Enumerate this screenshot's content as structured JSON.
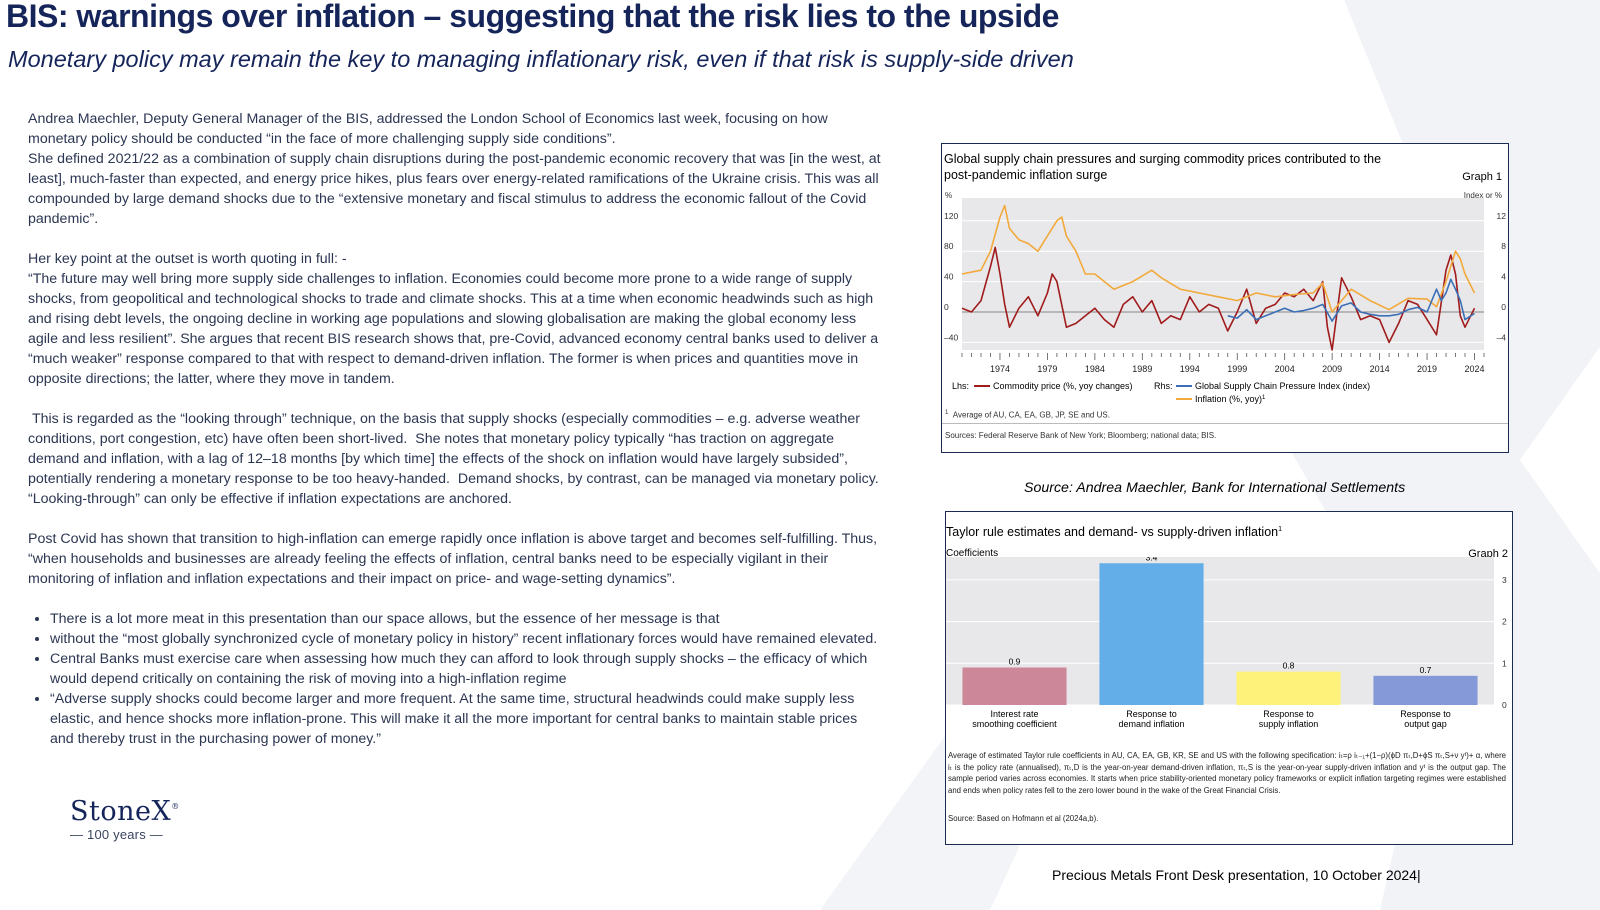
{
  "header": {
    "title": "BIS:  warnings over inflation – suggesting that the risk lies to the upside",
    "subtitle": "Monetary policy may remain the key to managing inflationary risk, even if that risk is supply-side driven"
  },
  "body": {
    "p1": "Andrea Maechler, Deputy General Manager of the BIS, addressed the London School of Economics last week, focusing on how monetary policy should be conducted “in the face of more challenging supply side conditions”.",
    "p2": "She  defined 2021/22 as a combination of supply chain disruptions during the post-pandemic economic recovery that was [in the west, at least], much-faster than expected, and energy price hikes, plus fears over energy-related ramifications of the Ukraine crisis.  This was all compounded by large demand shocks due to the “extensive monetary and fiscal stimulus to address the economic fallout of the Covid pandemic”.",
    "p3": "Her key point at the outset is worth quoting in full: -",
    "p4": "“The future may well bring more supply side challenges to inflation. Economies could become more prone to a wide range of supply shocks, from geopolitical and technological shocks to trade and climate shocks. This at a time when economic headwinds such as high and rising debt levels, the ongoing decline in working age populations and slowing globalisation are making the global economy less agile and less resilient”. She argues that recent BIS research shows that, pre-Covid, advanced economy central banks used to deliver a “much weaker” response compared to that with respect to demand-driven inflation. The former is when prices and quantities move in opposite directions; the latter, where they move in tandem.",
    "p5": " This is regarded as the “looking through” technique, on the basis that supply shocks (especially commodities – e.g. adverse weather conditions, port congestion, etc) have often been short-lived.  She notes that monetary policy typically “has traction on aggregate demand and inflation, with a lag of 12–18 months [by which time] the effects of the shock on inflation would have largely subsided”, potentially rendering a monetary response to be too heavy-handed.  Demand shocks, by contrast, can be managed via monetary policy.  “Looking-through” can only be effective if inflation expectations are anchored.",
    "p6": "Post Covid has shown that transition to high-inflation can emerge rapidly once inflation is above target and becomes self-fulfilling.  Thus, “when households and businesses are already feeling the effects of inflation, central banks need to be especially vigilant in their monitoring of inflation and inflation expectations and their impact on price- and wage-setting dynamics”.",
    "bullets": [
      "There is a lot more meat in this presentation than our space allows, but the essence of her message is that",
      "without the “most globally synchronized cycle of monetary policy in history” recent inflationary forces would have remained elevated.",
      "Central Banks must exercise care when assessing how much they can afford to look through supply shocks – the efficacy of which would depend critically on containing  the risk of moving into a high-inflation regime",
      "“Adverse supply shocks could become larger and more frequent. At the same time, structural headwinds could make supply less elastic, and hence shocks more inflation-prone. This will make it all the more important for central banks to maintain stable prices and thereby trust in the purchasing power of money.”"
    ]
  },
  "logo": {
    "name": "StoneX",
    "mark": "®",
    "years": "— 100 years —"
  },
  "graph1": {
    "title_line1": "Global supply chain pressures and surging commodity prices contributed to the",
    "title_line2": "post-pandemic inflation surge",
    "number": "Graph 1",
    "lhs_unit": "%",
    "rhs_unit": "Index or %",
    "legend": {
      "lhs_prefix": "Lhs:",
      "rhs_prefix": "Rhs:",
      "commodity": "Commodity price (%, yoy changes)",
      "gscpi": "Global Supply Chain Pressure Index (index)",
      "inflation": "Inflation (%, yoy)",
      "inflation_sup": "1"
    },
    "footnote_sup": "1",
    "footnote": "Average of AU, CA, EA, GB, JP, SE and US.",
    "sources": "Sources: Federal Reserve Bank of New York; Bloomberg; national data; BIS."
  },
  "graph1_source": "Source: Andrea Maechler, Bank for International Settlements",
  "graph2": {
    "title": "Taylor rule estimates and demand- vs supply-driven inflation",
    "title_sup": "1",
    "number": "Graph 2",
    "unit": "Coefficients",
    "note": "Average of estimated Taylor rule coefficients in AU, CA, EA, GB, KR, SE and US with the following specification: iₜ=ρ iₜ₋₁+(1−ρ)(ϕD πₜ,D+ϕS πₜ,S+ν yᵗ)+ α, where iₜ is the policy rate (annualised), πₜ,D is the year-on-year demand-driven inflation, πₜ,S is the year-on-year supply-driven inflation and yᵗ is the output gap. The sample period varies across economies. It starts when price stability-oriented monetary policy frameworks or explicit inflation targeting regimes were established and ends when policy rates fell to the zero lower bound in the wake of the Great Financial Crisis.",
    "source": "Source: Based on Hofmann et al (2024a,b)."
  },
  "footer": "Precious Metals Front Desk presentation, 10 October 2024|",
  "chart_data": [
    {
      "type": "line",
      "title": "Global supply chain pressures and surging commodity prices contributed to the post-pandemic inflation surge",
      "x_ticks": [
        "1974",
        "1979",
        "1984",
        "1989",
        "1994",
        "1999",
        "2004",
        "2009",
        "2014",
        "2019",
        "2024"
      ],
      "xlim": [
        1970,
        2025
      ],
      "y_left_ticks": [
        "120",
        "80",
        "40",
        "0",
        "–40"
      ],
      "ylim_left": [
        -50,
        150
      ],
      "y_right_ticks": [
        "12",
        "8",
        "4",
        "0",
        "–4"
      ],
      "ylim_right": [
        -5,
        15
      ],
      "grid": true,
      "legend": "bottom",
      "series": [
        {
          "name": "Commodity price (%, yoy changes)",
          "axis": "left",
          "color": "#a01c1c",
          "x": [
            1970,
            1971,
            1972,
            1973,
            1973.5,
            1974,
            1974.5,
            1975,
            1976,
            1977,
            1978,
            1979,
            1979.5,
            1980,
            1981,
            1982,
            1983,
            1984,
            1985,
            1986,
            1987,
            1988,
            1989,
            1990,
            1991,
            1992,
            1993,
            1994,
            1995,
            1996,
            1997,
            1998,
            1999,
            2000,
            2001,
            2002,
            2003,
            2004,
            2005,
            2006,
            2007,
            2008,
            2008.5,
            2009,
            2010,
            2011,
            2012,
            2013,
            2014,
            2015,
            2016,
            2017,
            2018,
            2019,
            2020,
            2021,
            2021.5,
            2022,
            2022.5,
            2023,
            2024
          ],
          "y": [
            5,
            0,
            15,
            60,
            85,
            50,
            10,
            -20,
            5,
            20,
            -5,
            25,
            50,
            40,
            -20,
            -15,
            -5,
            5,
            -10,
            -20,
            10,
            20,
            0,
            15,
            -15,
            -5,
            -10,
            20,
            0,
            10,
            5,
            -25,
            0,
            30,
            -15,
            5,
            10,
            25,
            20,
            30,
            15,
            40,
            -20,
            -50,
            45,
            20,
            -10,
            -5,
            -10,
            -40,
            -15,
            15,
            10,
            -10,
            -30,
            55,
            75,
            50,
            -5,
            -20,
            5
          ]
        },
        {
          "name": "Inflation (%, yoy)",
          "axis": "right",
          "color": "#f2a93b",
          "x": [
            1970,
            1972,
            1973,
            1974,
            1974.5,
            1975,
            1976,
            1977,
            1978,
            1979,
            1980,
            1980.5,
            1981,
            1982,
            1983,
            1984,
            1986,
            1988,
            1990,
            1991,
            1993,
            1995,
            1997,
            1999,
            2001,
            2003,
            2005,
            2007,
            2008,
            2009,
            2011,
            2013,
            2015,
            2017,
            2019,
            2020,
            2021,
            2022,
            2022.5,
            2023,
            2024
          ],
          "y": [
            5,
            5.5,
            8,
            12.5,
            14,
            11,
            9.5,
            9,
            8,
            10,
            12,
            12.5,
            10,
            8,
            5,
            5,
            3,
            4,
            5.5,
            4.5,
            3,
            2.5,
            2,
            1.5,
            2.5,
            2,
            2.3,
            2.5,
            3.8,
            0,
            3,
            1.5,
            0.3,
            1.8,
            1.7,
            0.7,
            4,
            8,
            7,
            5,
            2.5
          ]
        },
        {
          "name": "Global Supply Chain Pressure Index (index)",
          "axis": "right",
          "color": "#3b6fb6",
          "x": [
            1998,
            1999,
            2000,
            2001,
            2002,
            2003,
            2004,
            2005,
            2006,
            2007,
            2008,
            2009,
            2010,
            2011,
            2012,
            2013,
            2014,
            2015,
            2016,
            2017,
            2018,
            2019,
            2020,
            2020.5,
            2021,
            2021.5,
            2022,
            2022.5,
            2023,
            2024
          ],
          "y": [
            -0.5,
            -0.8,
            0.3,
            -1,
            -0.5,
            0,
            0.5,
            0,
            0.2,
            0.5,
            1,
            -1.2,
            0.8,
            1.2,
            0,
            -0.3,
            -0.5,
            -0.5,
            -0.3,
            0.3,
            0.6,
            0,
            3,
            1.5,
            2.5,
            4.3,
            3,
            1.5,
            -1,
            -0.2
          ]
        }
      ]
    },
    {
      "type": "bar",
      "title": "Taylor rule estimates and demand- vs supply-driven inflation",
      "ylabel": "Coefficients",
      "categories": [
        "Interest rate smoothing coefficient",
        "Response to demand inflation",
        "Response to supply inflation",
        "Response to output gap"
      ],
      "category_lines": [
        [
          "Interest rate",
          "smoothing coefficient"
        ],
        [
          "Response to",
          "demand inflation"
        ],
        [
          "Response to",
          "supply inflation"
        ],
        [
          "Response to",
          "output gap"
        ]
      ],
      "values": [
        0.9,
        3.4,
        0.8,
        0.7
      ],
      "value_labels": [
        "0.9",
        "3.4",
        "0.8",
        "0.7"
      ],
      "colors": [
        "#cc8899",
        "#63ade8",
        "#fff27a",
        "#8598d8"
      ],
      "y_ticks": [
        "0",
        "1",
        "2",
        "3"
      ],
      "ylim": [
        0,
        3.55
      ],
      "grid": true
    }
  ]
}
